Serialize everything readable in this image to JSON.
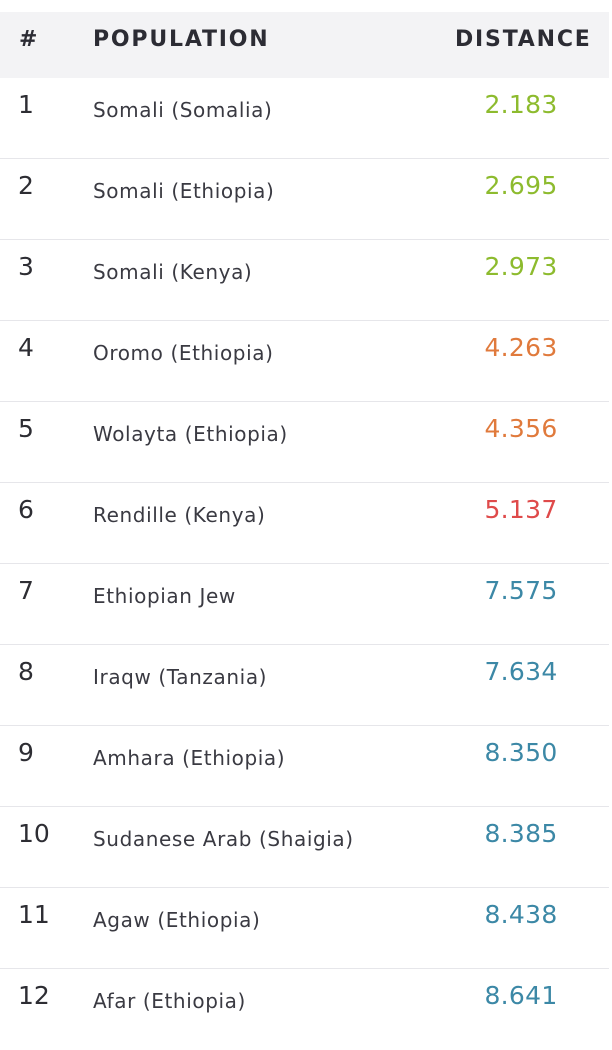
{
  "header": {
    "rank_label": "#",
    "population_label": "POPULATION",
    "distance_label": "DISTANCE"
  },
  "colors": {
    "close": "#8dbb2e",
    "medium": "#e07a3c",
    "far": "#df4a4a",
    "distant": "#3c88a6"
  },
  "rows": [
    {
      "rank": "1",
      "population": "Somali (Somalia)",
      "distance": "2.183",
      "tier": "close"
    },
    {
      "rank": "2",
      "population": "Somali (Ethiopia)",
      "distance": "2.695",
      "tier": "close"
    },
    {
      "rank": "3",
      "population": "Somali (Kenya)",
      "distance": "2.973",
      "tier": "close"
    },
    {
      "rank": "4",
      "population": "Oromo (Ethiopia)",
      "distance": "4.263",
      "tier": "medium"
    },
    {
      "rank": "5",
      "population": "Wolayta (Ethiopia)",
      "distance": "4.356",
      "tier": "medium"
    },
    {
      "rank": "6",
      "population": "Rendille (Kenya)",
      "distance": "5.137",
      "tier": "far"
    },
    {
      "rank": "7",
      "population": "Ethiopian Jew",
      "distance": "7.575",
      "tier": "distant"
    },
    {
      "rank": "8",
      "population": "Iraqw (Tanzania)",
      "distance": "7.634",
      "tier": "distant"
    },
    {
      "rank": "9",
      "population": "Amhara (Ethiopia)",
      "distance": "8.350",
      "tier": "distant"
    },
    {
      "rank": "10",
      "population": "Sudanese Arab (Shaigia)",
      "distance": "8.385",
      "tier": "distant"
    },
    {
      "rank": "11",
      "population": "Agaw (Ethiopia)",
      "distance": "8.438",
      "tier": "distant"
    },
    {
      "rank": "12",
      "population": "Afar (Ethiopia)",
      "distance": "8.641",
      "tier": "distant"
    }
  ]
}
